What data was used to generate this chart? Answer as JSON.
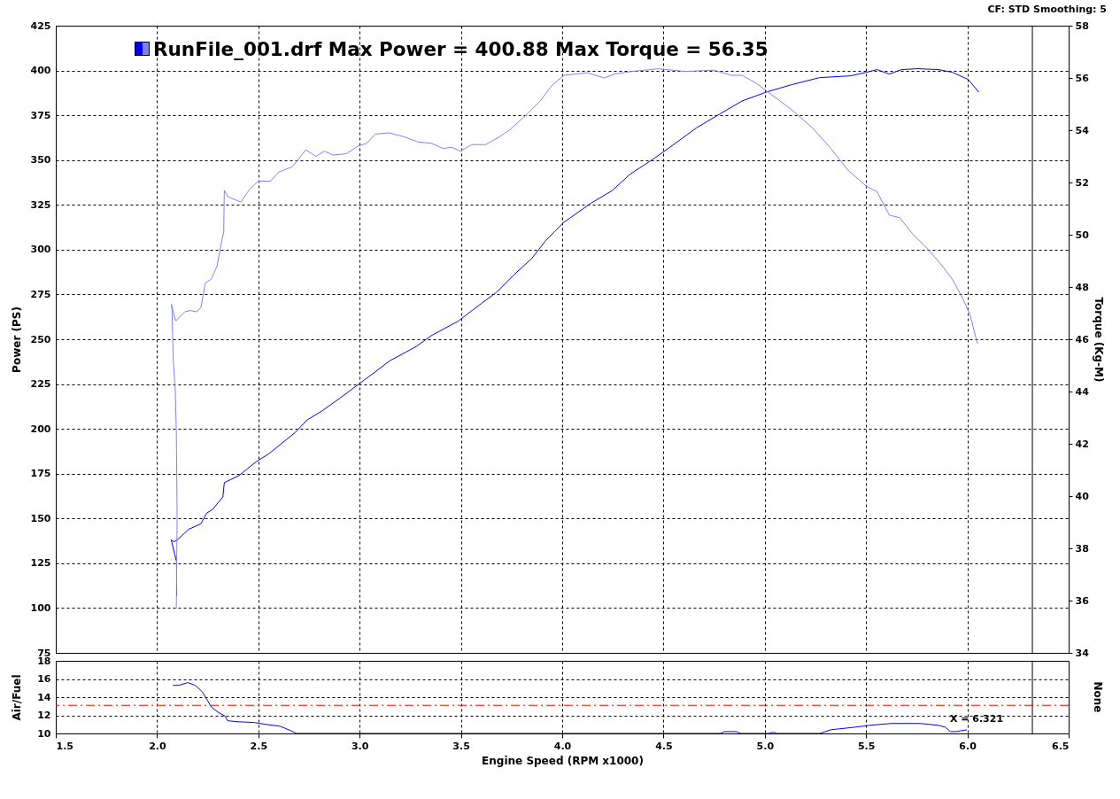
{
  "chart_data": [
    {
      "type": "line",
      "title": "RunFile_001.drf Max Power = 400.88 Max Torque = 56.35",
      "ylabel": "Power (PS)",
      "y2label": "Torque (Kg-M)",
      "annotations": [
        "CF: STD Smoothing: 5"
      ],
      "xlim": [
        1.5,
        6.5
      ],
      "xticks": [
        1.5,
        2,
        2.5,
        3,
        3.5,
        4,
        4.5,
        5,
        5.5,
        6,
        6.5
      ],
      "ylim": [
        75,
        425
      ],
      "yticks": [
        75,
        100,
        125,
        150,
        175,
        200,
        225,
        250,
        275,
        300,
        325,
        350,
        375,
        400,
        425
      ],
      "y2lim": [
        34,
        58
      ],
      "y2ticks": [
        34,
        36,
        38,
        40,
        42,
        44,
        46,
        48,
        50,
        52,
        54,
        56,
        58
      ],
      "tick_labels": "y",
      "grid": true,
      "series": [
        {
          "color": "#0000ff",
          "x": [
            2.097,
            2.096,
            2.07,
            2.085,
            2.099,
            2.157,
            2.216,
            2.245,
            2.274,
            2.325,
            2.332,
            2.405,
            2.493,
            2.551,
            2.682,
            2.741,
            2.814,
            2.901,
            2.996,
            3.091,
            3.149,
            3.28,
            3.353,
            3.485,
            3.601,
            3.674,
            3.762,
            3.849,
            3.918,
            4.005,
            4.143,
            4.247,
            4.334,
            4.455,
            4.542,
            4.663,
            4.767,
            4.888,
            5.009,
            5.13,
            5.269,
            5.424,
            5.502,
            5.554,
            5.615,
            5.675,
            5.753,
            5.857,
            5.926,
            6.004,
            6.056
          ],
          "values": [
            107,
            126,
            138,
            137,
            138,
            144,
            147,
            153,
            155,
            162,
            170,
            174,
            182,
            186,
            198,
            205,
            210,
            217,
            225,
            233,
            238,
            246,
            252,
            260,
            270,
            276,
            286,
            295,
            305,
            315,
            326,
            333,
            342,
            351,
            358,
            368,
            375,
            383,
            388,
            392,
            396,
            397,
            399,
            400.5,
            398,
            400.5,
            401,
            400.5,
            399,
            395,
            388
          ]
        },
        {
          "color": "#8080ff",
          "axis": "y2",
          "x": [
            2.095,
            2.099,
            2.095,
            2.09,
            2.08,
            2.074,
            2.07,
            2.092,
            2.136,
            2.165,
            2.194,
            2.216,
            2.238,
            2.267,
            2.296,
            2.319,
            2.329,
            2.332,
            2.35,
            2.383,
            2.413,
            2.458,
            2.5,
            2.559,
            2.601,
            2.668,
            2.734,
            2.785,
            2.826,
            2.868,
            2.935,
            2.994,
            3.036,
            3.077,
            3.144,
            3.22,
            3.287,
            3.354,
            3.412,
            3.454,
            3.496,
            3.555,
            3.622,
            3.68,
            3.739,
            3.789,
            3.831,
            3.889,
            3.948,
            4.007,
            4.124,
            4.208,
            4.258,
            4.342,
            4.472,
            4.611,
            4.749,
            4.836,
            4.888,
            4.957,
            5.061,
            5.13,
            5.234,
            5.321,
            5.407,
            5.502,
            5.554,
            5.615,
            5.667,
            5.727,
            5.805,
            5.866,
            5.926,
            5.978,
            6.013,
            6.049
          ],
          "values": [
            35.7,
            39.2,
            42.5,
            44.0,
            45.2,
            47.1,
            47.35,
            46.7,
            47.05,
            47.1,
            47.05,
            47.2,
            48.15,
            48.3,
            48.8,
            49.75,
            50.1,
            51.7,
            51.45,
            51.35,
            51.25,
            51.75,
            52.05,
            52.05,
            52.4,
            52.6,
            53.25,
            53.0,
            53.2,
            53.05,
            53.1,
            53.4,
            53.5,
            53.85,
            53.9,
            53.75,
            53.55,
            53.5,
            53.3,
            53.35,
            53.2,
            53.45,
            53.45,
            53.7,
            54.0,
            54.35,
            54.65,
            55.1,
            55.7,
            56.1,
            56.2,
            56.0,
            56.15,
            56.25,
            56.35,
            56.25,
            56.3,
            56.1,
            56.1,
            55.8,
            55.2,
            54.8,
            54.1,
            53.35,
            52.5,
            51.85,
            51.65,
            50.75,
            50.65,
            50.05,
            49.45,
            48.9,
            48.3,
            47.55,
            46.95,
            45.85
          ]
        }
      ],
      "ref_lines": [
        {
          "axis": "x",
          "value": 6.321,
          "color": "#000000"
        }
      ]
    },
    {
      "type": "line",
      "xlabel": "Engine Speed (RPM x1000)",
      "ylabel": "Air/Fuel",
      "y2label": "None",
      "xlim": [
        1.5,
        6.5
      ],
      "xticks": [
        1.5,
        {
          "value": 2,
          "label": "2.0"
        },
        2.5,
        {
          "value": 3,
          "label": "3.0"
        },
        3.5,
        {
          "value": 4,
          "label": "4.0"
        },
        4.5,
        {
          "value": 5,
          "label": "5.0"
        },
        5.5,
        {
          "value": 6,
          "label": "6.0"
        },
        6.5
      ],
      "ylim": [
        10,
        18
      ],
      "yticks": [
        10,
        12,
        14,
        16,
        18
      ],
      "grid": true,
      "series": [
        {
          "color": "#0000ff",
          "x": [
            2.08,
            2.107,
            2.152,
            2.188,
            2.223,
            2.25,
            2.268,
            2.304,
            2.336,
            2.348,
            2.393,
            2.482,
            2.536,
            2.607,
            2.661,
            2.688,
            4.78,
            4.8,
            4.86,
            4.88,
            5.02,
            5.03,
            5.05,
            5.06,
            5.272,
            5.325,
            5.449,
            5.519,
            5.625,
            5.767,
            5.855,
            5.89,
            5.917,
            5.943,
            5.996
          ],
          "values": [
            15.3,
            15.3,
            15.6,
            15.3,
            14.6,
            13.6,
            12.9,
            12.3,
            11.9,
            11.4,
            11.3,
            11.2,
            11.0,
            10.8,
            10.3,
            10,
            10,
            10.2,
            10.2,
            10,
            10,
            10.1,
            10.1,
            10,
            10,
            10.4,
            10.7,
            10.9,
            11.1,
            11.1,
            10.9,
            10.7,
            10.2,
            10.2,
            10.4
          ]
        }
      ],
      "ref_lines": [
        {
          "axis": "y",
          "value": 13.1,
          "color": "#ff0000",
          "line_style": "dashed"
        },
        {
          "axis": "x",
          "value": 6.321,
          "label": "X = 6.321",
          "color": "#000000"
        }
      ]
    }
  ]
}
